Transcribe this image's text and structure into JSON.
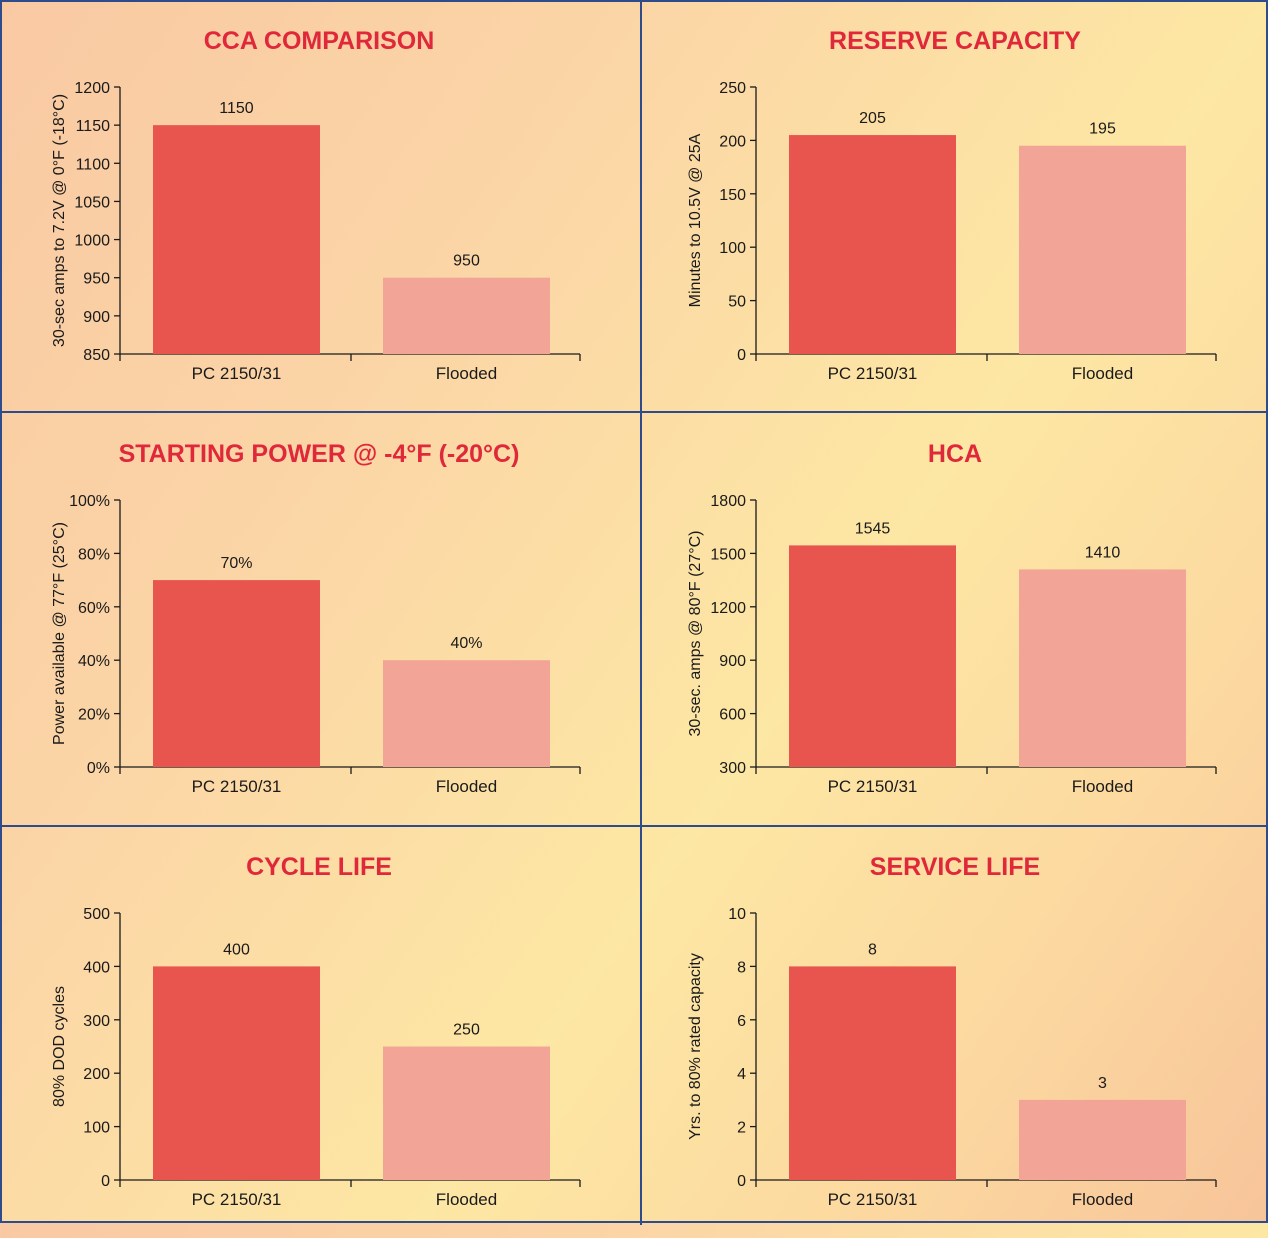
{
  "colors": {
    "primary_bar": "#e8554e",
    "secondary_bar": "#f2a497",
    "title": "#e0283b",
    "frame": "#2e4b8c"
  },
  "chart_data": [
    {
      "type": "bar",
      "title": "CCA COMPARISON",
      "ylabel": "30-sec amps to 7.2V @ 0°F (-18°C)",
      "categories": [
        "PC 2150/31",
        "Flooded"
      ],
      "values": [
        1150,
        950
      ],
      "value_labels": [
        "1150",
        "950"
      ],
      "ylim": [
        850,
        1200
      ],
      "ticks": [
        850,
        900,
        950,
        1000,
        1050,
        1100,
        1150,
        1200
      ],
      "tick_labels": [
        "850",
        "900",
        "950",
        "1000",
        "1050",
        "1100",
        "1150",
        "1200"
      ]
    },
    {
      "type": "bar",
      "title": "RESERVE CAPACITY",
      "ylabel": "Minutes to 10.5V @ 25A",
      "categories": [
        "PC 2150/31",
        "Flooded"
      ],
      "values": [
        205,
        195
      ],
      "value_labels": [
        "205",
        "195"
      ],
      "ylim": [
        0,
        250
      ],
      "ticks": [
        0,
        50,
        100,
        150,
        200,
        250
      ],
      "tick_labels": [
        "0",
        "50",
        "100",
        "150",
        "200",
        "250"
      ]
    },
    {
      "type": "bar",
      "title": "STARTING POWER @ -4°F (-20°C)",
      "ylabel": "Power available @ 77°F (25°C)",
      "categories": [
        "PC 2150/31",
        "Flooded"
      ],
      "values": [
        70,
        40
      ],
      "value_labels": [
        "70%",
        "40%"
      ],
      "ylim": [
        0,
        100
      ],
      "ticks": [
        0,
        20,
        40,
        60,
        80,
        100
      ],
      "tick_labels": [
        "0%",
        "20%",
        "40%",
        "60%",
        "80%",
        "100%"
      ]
    },
    {
      "type": "bar",
      "title": "HCA",
      "ylabel": "30-sec. amps @ 80°F (27°C)",
      "categories": [
        "PC 2150/31",
        "Flooded"
      ],
      "values": [
        1545,
        1410
      ],
      "value_labels": [
        "1545",
        "1410"
      ],
      "ylim": [
        300,
        1800
      ],
      "ticks": [
        300,
        600,
        900,
        1200,
        1500,
        1800
      ],
      "tick_labels": [
        "300",
        "600",
        "900",
        "1200",
        "1500",
        "1800"
      ]
    },
    {
      "type": "bar",
      "title": "CYCLE LIFE",
      "ylabel": "80% DOD cycles",
      "categories": [
        "PC 2150/31",
        "Flooded"
      ],
      "values": [
        400,
        250
      ],
      "value_labels": [
        "400",
        "250"
      ],
      "ylim": [
        0,
        500
      ],
      "ticks": [
        0,
        100,
        200,
        300,
        400,
        500
      ],
      "tick_labels": [
        "0",
        "100",
        "200",
        "300",
        "400",
        "500"
      ]
    },
    {
      "type": "bar",
      "title": "SERVICE LIFE",
      "ylabel": "Yrs. to 80% rated capacity",
      "categories": [
        "PC 2150/31",
        "Flooded"
      ],
      "values": [
        8,
        3
      ],
      "value_labels": [
        "8",
        "3"
      ],
      "ylim": [
        0,
        10
      ],
      "ticks": [
        0,
        2,
        4,
        6,
        8,
        10
      ],
      "tick_labels": [
        "0",
        "2",
        "4",
        "6",
        "8",
        "10"
      ]
    }
  ]
}
